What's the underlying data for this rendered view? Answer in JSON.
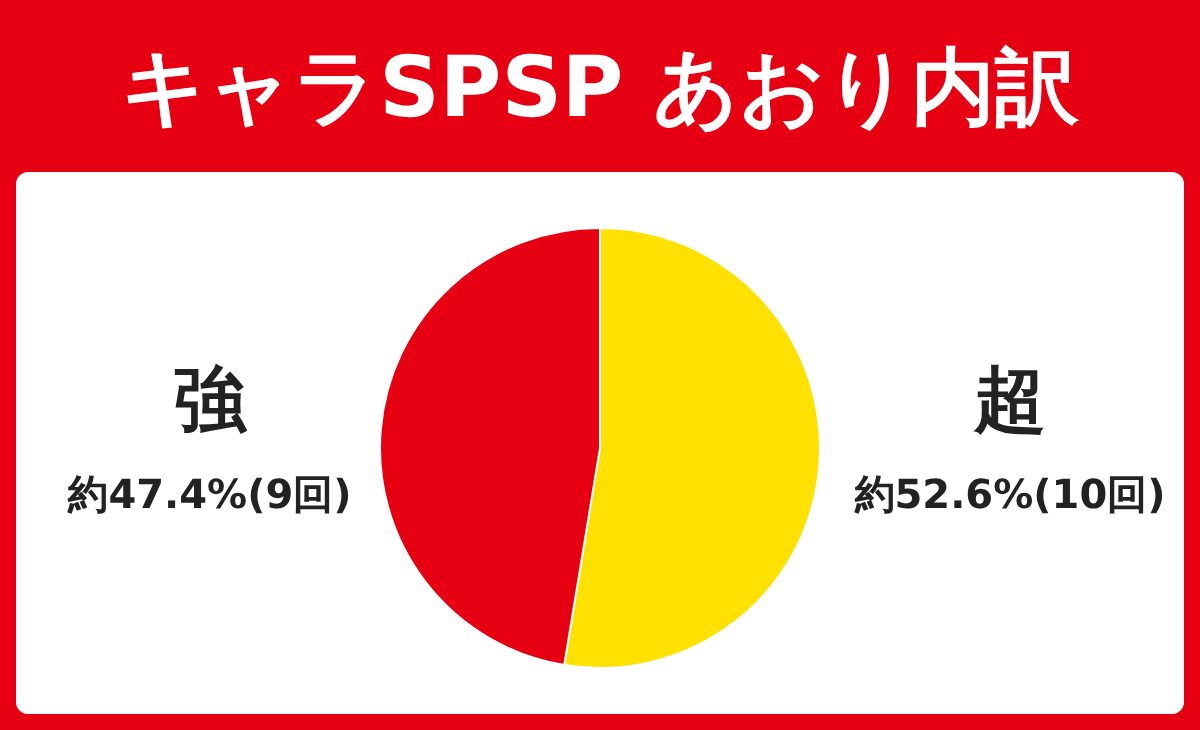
{
  "chart_data": {
    "type": "pie",
    "title": "キャラSPSP あおり内訳",
    "categories": [
      "強",
      "超"
    ],
    "values": [
      47.4,
      52.6
    ],
    "value_labels": [
      "約47.4%(9回)",
      "約52.6%(10回)"
    ],
    "colors": [
      "#e60012",
      "#ffe100"
    ]
  }
}
